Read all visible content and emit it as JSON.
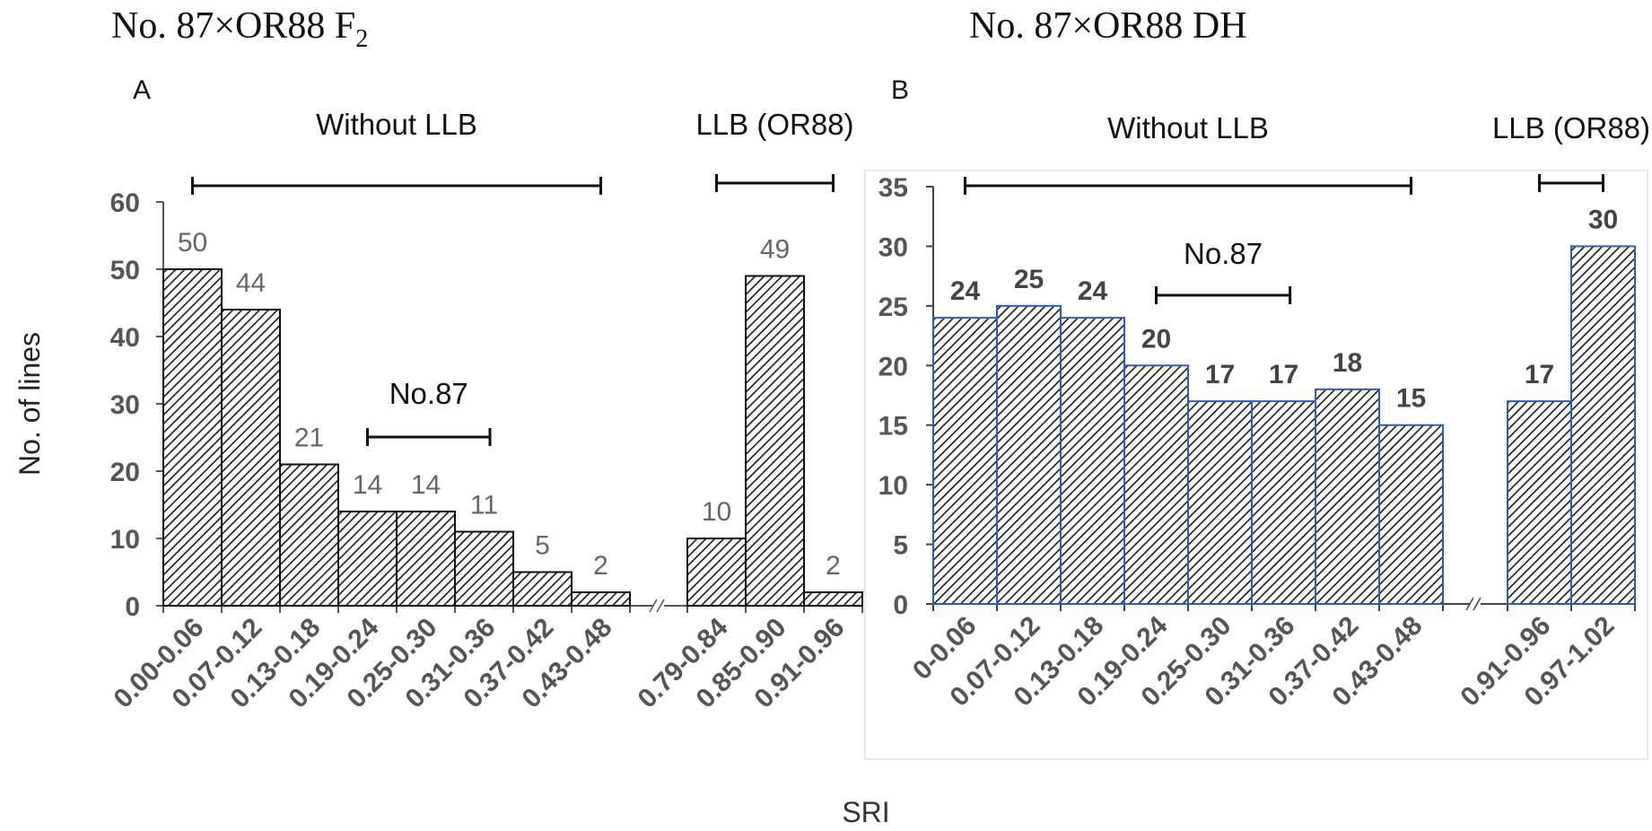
{
  "panel_titles": {
    "a_prefix": "No. 87×OR88 F",
    "a_subscript": "2",
    "b": "No. 87×OR88 DH"
  },
  "shared_xlabel": "SRI",
  "shared_ylabel": "No. of lines",
  "chart_data": [
    {
      "type": "bar",
      "panel_label": "A",
      "categories": [
        "0.00-0.06",
        "0.07-0.12",
        "0.13-0.18",
        "0.19-0.24",
        "0.25-0.30",
        "0.31-0.36",
        "0.37-0.42",
        "0.43-0.48",
        "0.79-0.84",
        "0.85-0.90",
        "0.91-0.96"
      ],
      "values": [
        50,
        44,
        21,
        14,
        14,
        11,
        5,
        2,
        10,
        49,
        2
      ],
      "yticks": [
        0,
        10,
        20,
        30,
        40,
        50,
        60
      ],
      "ylim": [
        0,
        60
      ],
      "axis_break_after_index": 7,
      "annotations": [
        {
          "text": "Without LLB",
          "span": [
            0,
            7
          ]
        },
        {
          "text": "LLB (OR88)",
          "span": [
            8,
            10
          ]
        },
        {
          "text": "No.87",
          "span": [
            3,
            5
          ]
        }
      ]
    },
    {
      "type": "bar",
      "panel_label": "B",
      "categories": [
        "0-0.06",
        "0.07-0.12",
        "0.13-0.18",
        "0.19-0.24",
        "0.25-0.30",
        "0.31-0.36",
        "0.37-0.42",
        "0.43-0.48",
        "0.91-0.96",
        "0.97-1.02"
      ],
      "values": [
        24,
        25,
        24,
        20,
        17,
        17,
        18,
        15,
        17,
        30
      ],
      "yticks": [
        0,
        5,
        10,
        15,
        20,
        25,
        30,
        35
      ],
      "ylim": [
        0,
        35
      ],
      "axis_break_after_index": 7,
      "annotations": [
        {
          "text": "Without LLB",
          "span": [
            0,
            7
          ]
        },
        {
          "text": "LLB (OR88)",
          "span": [
            8,
            9
          ]
        },
        {
          "text": "No.87",
          "span": [
            3,
            5
          ]
        }
      ]
    }
  ]
}
